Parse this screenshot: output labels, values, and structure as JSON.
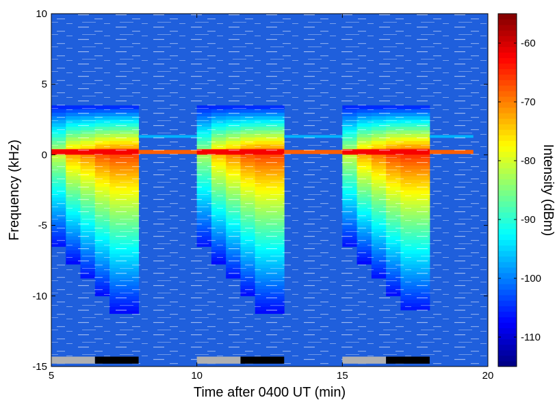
{
  "chart_data": {
    "type": "heatmap",
    "title": "",
    "xlabel": "Time after 0400 UT (min)",
    "ylabel": "Frequency (kHz)",
    "xlim": [
      5,
      20
    ],
    "ylim": [
      -15,
      10
    ],
    "xticks": [
      5,
      10,
      15,
      20
    ],
    "yticks": [
      -15,
      -10,
      -5,
      0,
      5,
      10
    ],
    "colorbar": {
      "label": "Intensity (dBm)",
      "range": [
        -115,
        -55
      ],
      "ticks": [
        -110,
        -100,
        -90,
        -80,
        -70,
        -60
      ],
      "colormap": "jet"
    },
    "background_dBm": -108,
    "carrier": {
      "frequency_kHz": 0.2,
      "intervals_min": [
        [
          5,
          19.5
        ]
      ],
      "intensity_on_dBm": -62,
      "intensity_off_dBm": -68
    },
    "weak_line": {
      "frequency_kHz": 1.3,
      "intervals_min": [
        [
          8,
          10
        ],
        [
          13,
          15
        ],
        [
          18,
          19.5
        ]
      ],
      "intensity_dBm": -97
    },
    "transmissions": [
      {
        "start_min": 5,
        "end_min": 8,
        "segments": [
          {
            "start": 5.0,
            "end": 5.5,
            "peak_dBm": -80
          },
          {
            "start": 5.5,
            "end": 6.0,
            "peak_dBm": -72
          },
          {
            "start": 6.0,
            "end": 6.5,
            "peak_dBm": -70
          },
          {
            "start": 6.5,
            "end": 7.0,
            "peak_dBm": -67
          },
          {
            "start": 7.0,
            "end": 8.0,
            "peak_dBm": -66
          }
        ]
      },
      {
        "start_min": 10,
        "end_min": 13,
        "segments": [
          {
            "start": 10.0,
            "end": 10.5,
            "peak_dBm": -82
          },
          {
            "start": 10.5,
            "end": 11.0,
            "peak_dBm": -73
          },
          {
            "start": 11.0,
            "end": 11.5,
            "peak_dBm": -70
          },
          {
            "start": 11.5,
            "end": 12.0,
            "peak_dBm": -67
          },
          {
            "start": 12.0,
            "end": 13.0,
            "peak_dBm": -66
          }
        ]
      },
      {
        "start_min": 15,
        "end_min": 18,
        "segments": [
          {
            "start": 15.0,
            "end": 15.5,
            "peak_dBm": -80
          },
          {
            "start": 15.5,
            "end": 16.0,
            "peak_dBm": -72
          },
          {
            "start": 16.0,
            "end": 16.5,
            "peak_dBm": -69
          },
          {
            "start": 16.5,
            "end": 17.0,
            "peak_dBm": -66
          },
          {
            "start": 17.0,
            "end": 18.0,
            "peak_dBm": -65
          }
        ]
      }
    ],
    "time_markers": [
      {
        "start_min": 5,
        "end_min": 6.5,
        "color": "#b0b0b0"
      },
      {
        "start_min": 6.5,
        "end_min": 8,
        "color": "#000000"
      },
      {
        "start_min": 10,
        "end_min": 11.5,
        "color": "#b0b0b0"
      },
      {
        "start_min": 11.5,
        "end_min": 13,
        "color": "#000000"
      },
      {
        "start_min": 15,
        "end_min": 16.5,
        "color": "#b0b0b0"
      },
      {
        "start_min": 16.5,
        "end_min": 18,
        "color": "#000000"
      }
    ],
    "marker_band_kHz": [
      -14.8,
      -14.3
    ]
  }
}
